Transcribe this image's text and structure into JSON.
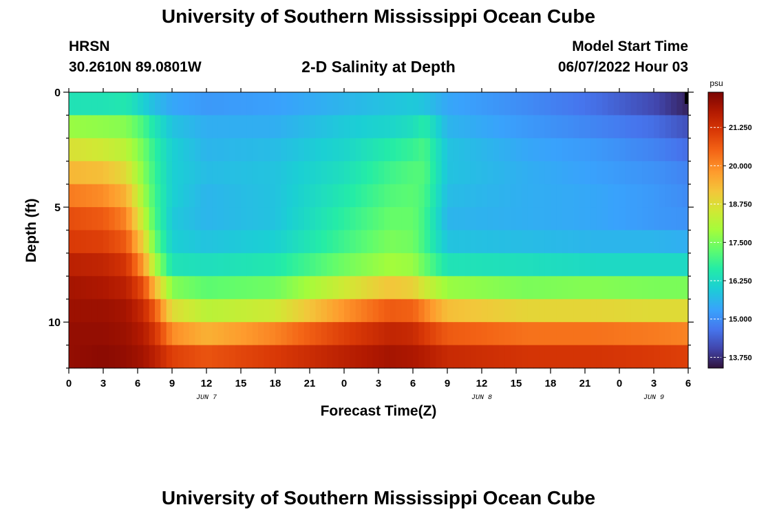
{
  "page": {
    "title": "University of Southern Mississippi Ocean Cube",
    "station": "HRSN",
    "coords": "30.2610N  89.0801W",
    "subtitle": "2-D Salinity at Depth",
    "model_start_label": "Model Start Time",
    "model_start_value": "06/07/2022 Hour 03",
    "footer_title": "University of Southern Mississippi Ocean Cube"
  },
  "chart_data": {
    "type": "heatmap",
    "title": "2-D Salinity at Depth",
    "xlabel": "Forecast Time(Z)",
    "ylabel": "Depth (ft)",
    "x_hours": [
      0,
      3,
      6,
      9,
      12,
      15,
      18,
      21,
      24,
      27,
      30,
      33,
      36,
      39,
      42,
      45,
      48,
      51,
      54
    ],
    "x_tick_labels": [
      "0",
      "3",
      "6",
      "9",
      "12",
      "15",
      "18",
      "21",
      "0",
      "3",
      "6",
      "9",
      "12",
      "15",
      "18",
      "21",
      "0",
      "3",
      "6"
    ],
    "date_labels": [
      {
        "hour": 12,
        "label": "JUN 7"
      },
      {
        "hour": 36,
        "label": "JUN 8"
      },
      {
        "hour": 51,
        "label": "JUN 9"
      }
    ],
    "y_ticks": [
      0,
      5,
      10
    ],
    "y_tick_labels": [
      "0",
      "5",
      "10"
    ],
    "ylim": [
      0,
      12
    ],
    "depth_levels": [
      0,
      1,
      2,
      3,
      4,
      5,
      6,
      7,
      8,
      9,
      10,
      11,
      12
    ],
    "xlim": [
      0,
      54
    ],
    "colorbar": {
      "units": "psu",
      "min": 13.4,
      "max": 22.4,
      "ticks": [
        13.75,
        15.0,
        16.25,
        17.5,
        18.75,
        20.0,
        21.25
      ],
      "tick_labels": [
        "13.750",
        "15.000",
        "16.250",
        "17.500",
        "18.750",
        "20.000",
        "21.250"
      ]
    },
    "salinity_keyframes": [
      {
        "hour": 0,
        "values": [
          16.4,
          17.8,
          18.7,
          19.4,
          20.2,
          20.8,
          21.1,
          21.6,
          21.9,
          22.0,
          22.1,
          22.1,
          22.2
        ]
      },
      {
        "hour": 3,
        "values": [
          16.4,
          17.7,
          18.5,
          19.3,
          20.0,
          20.6,
          21.0,
          21.5,
          21.8,
          22.0,
          22.1,
          22.2,
          22.3
        ]
      },
      {
        "hour": 5,
        "values": [
          16.5,
          17.6,
          18.2,
          18.8,
          19.5,
          20.1,
          20.6,
          21.2,
          21.6,
          21.9,
          22.0,
          22.1,
          22.2
        ]
      },
      {
        "hour": 6.5,
        "values": [
          16.0,
          17.0,
          17.4,
          17.6,
          17.9,
          18.3,
          19.0,
          19.8,
          20.8,
          21.4,
          21.7,
          21.9,
          22.1
        ]
      },
      {
        "hour": 7.5,
        "values": [
          15.7,
          16.4,
          16.7,
          16.8,
          16.9,
          17.0,
          17.3,
          18.0,
          19.4,
          20.6,
          21.2,
          21.6,
          21.9
        ]
      },
      {
        "hour": 9,
        "values": [
          15.4,
          15.8,
          16.0,
          16.0,
          16.0,
          15.9,
          16.0,
          16.4,
          17.6,
          18.8,
          20.0,
          21.0,
          21.6
        ]
      },
      {
        "hour": 12,
        "values": [
          15.2,
          15.5,
          15.6,
          15.7,
          15.6,
          15.6,
          15.8,
          16.3,
          17.2,
          18.2,
          19.5,
          20.7,
          21.5
        ]
      },
      {
        "hour": 18,
        "values": [
          15.3,
          15.5,
          15.7,
          15.8,
          15.8,
          15.8,
          16.0,
          16.5,
          17.4,
          18.5,
          20.1,
          21.1,
          21.7
        ]
      },
      {
        "hour": 24,
        "values": [
          15.6,
          15.9,
          16.1,
          16.3,
          16.5,
          16.7,
          16.9,
          17.4,
          18.5,
          19.9,
          21.0,
          21.6,
          22.0
        ]
      },
      {
        "hour": 28,
        "values": [
          15.8,
          16.1,
          16.6,
          16.9,
          17.1,
          17.3,
          17.5,
          17.9,
          19.2,
          20.6,
          21.5,
          21.9,
          22.2
        ]
      },
      {
        "hour": 30,
        "values": [
          15.9,
          16.3,
          16.8,
          17.1,
          17.2,
          17.3,
          17.4,
          17.8,
          19.0,
          20.5,
          21.4,
          21.8,
          22.1
        ]
      },
      {
        "hour": 31,
        "values": [
          15.8,
          16.6,
          17.0,
          17.1,
          17.0,
          16.9,
          16.9,
          17.3,
          18.5,
          20.1,
          21.1,
          21.7,
          22.0
        ]
      },
      {
        "hour": 33,
        "values": [
          15.4,
          15.6,
          15.8,
          15.8,
          15.7,
          15.6,
          15.8,
          16.4,
          17.8,
          19.3,
          20.6,
          21.4,
          21.8
        ]
      },
      {
        "hour": 40,
        "values": [
          15.0,
          15.2,
          15.4,
          15.5,
          15.5,
          15.5,
          15.7,
          16.3,
          17.5,
          18.9,
          20.3,
          21.2,
          21.7
        ]
      },
      {
        "hour": 46,
        "values": [
          14.6,
          14.9,
          15.2,
          15.3,
          15.4,
          15.4,
          15.6,
          16.2,
          17.6,
          18.9,
          20.3,
          21.2,
          21.7
        ]
      },
      {
        "hour": 51,
        "values": [
          14.1,
          14.6,
          14.9,
          15.1,
          15.2,
          15.2,
          15.6,
          16.2,
          17.5,
          18.8,
          20.2,
          21.1,
          21.6
        ]
      },
      {
        "hour": 54,
        "values": [
          13.6,
          14.2,
          14.6,
          14.9,
          15.0,
          15.1,
          15.5,
          16.2,
          17.5,
          18.8,
          20.1,
          21.0,
          21.5
        ]
      }
    ]
  }
}
